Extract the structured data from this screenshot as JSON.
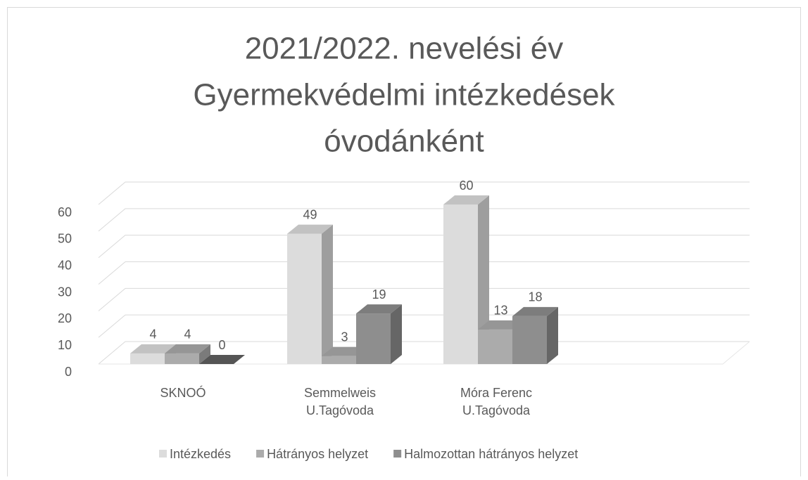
{
  "chart_data": {
    "type": "bar3d",
    "title": [
      "2021/2022. nevelési év",
      "Gyermekvédelmi intézkedések",
      "óvodánként"
    ],
    "categories": [
      "SKNOÓ",
      "Semmelweis U.Tagóvoda",
      "Móra Ferenc U.Tagóvoda"
    ],
    "series": [
      {
        "name": "Intézkedés",
        "color": "#dcdcdc",
        "values": [
          4,
          49,
          60
        ]
      },
      {
        "name": "Hátrányos helyzet",
        "color": "#ababab",
        "values": [
          4,
          3,
          13
        ]
      },
      {
        "name": "Halmozottan hátrányos helyzet",
        "color": "#8e8e8e",
        "values": [
          0,
          19,
          18
        ]
      }
    ],
    "ylim": [
      0,
      60
    ],
    "yticks": [
      0,
      10,
      20,
      30,
      40,
      50,
      60
    ],
    "grid": true,
    "legend": "bottom"
  }
}
